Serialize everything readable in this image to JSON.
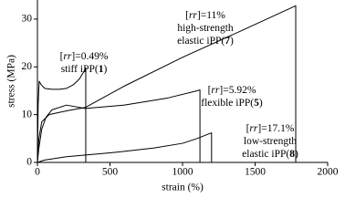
{
  "chart_data": {
    "type": "line",
    "xlabel": "strain (%)",
    "ylabel": "stress (MPa)",
    "xlim": [
      0,
      2000
    ],
    "xticks": [
      0,
      500,
      1000,
      1500,
      2000
    ],
    "ylim": [
      0,
      34
    ],
    "yticks": [
      0,
      10,
      20,
      30
    ],
    "series": [
      {
        "color": "#000000",
        "x": [
          0,
          5,
          12,
          25,
          50,
          100,
          150,
          200,
          250,
          290,
          320,
          333,
          333
        ],
        "values": [
          0,
          12,
          17,
          16.3,
          15.5,
          15.3,
          15.3,
          15.5,
          16.3,
          17.5,
          19,
          19.8,
          0
        ]
      },
      {
        "color": "#000000",
        "x": [
          0,
          10,
          30,
          80,
          200,
          330,
          600,
          1000,
          1400,
          1780,
          1780
        ],
        "values": [
          0,
          5,
          8.5,
          10,
          10.8,
          11.5,
          16,
          22,
          27.5,
          32.8,
          0
        ]
      },
      {
        "color": "#000000",
        "x": [
          0,
          10,
          30,
          60,
          100,
          200,
          330,
          600,
          900,
          1100,
          1120,
          1120
        ],
        "values": [
          0,
          3,
          7,
          9.5,
          11,
          12,
          11.3,
          12,
          13.5,
          15,
          15.2,
          0
        ]
      },
      {
        "color": "#000000",
        "x": [
          0,
          50,
          200,
          500,
          800,
          1000,
          1100,
          1200,
          1200
        ],
        "values": [
          0,
          0.5,
          1.2,
          2,
          3,
          4,
          5,
          6.2,
          0
        ]
      }
    ],
    "annotations": [
      {
        "lines": [
          [
            "[",
            "rr",
            "]=0.49%"
          ],
          [
            "stiff iPP(",
            "1",
            ")"
          ]
        ]
      },
      {
        "lines": [
          [
            "[",
            "rr",
            "]=11%"
          ],
          [
            "high-strength"
          ],
          [
            "elastic iPP(",
            "7",
            ")"
          ]
        ]
      },
      {
        "lines": [
          [
            "[",
            "rr",
            "]=5.92%"
          ],
          [
            "flexible iPP(",
            "5",
            ")"
          ]
        ]
      },
      {
        "lines": [
          [
            "[",
            "rr",
            "]=17.1%"
          ],
          [
            "low-strength"
          ],
          [
            "elastic iPP(",
            "8",
            ")"
          ]
        ]
      }
    ]
  }
}
